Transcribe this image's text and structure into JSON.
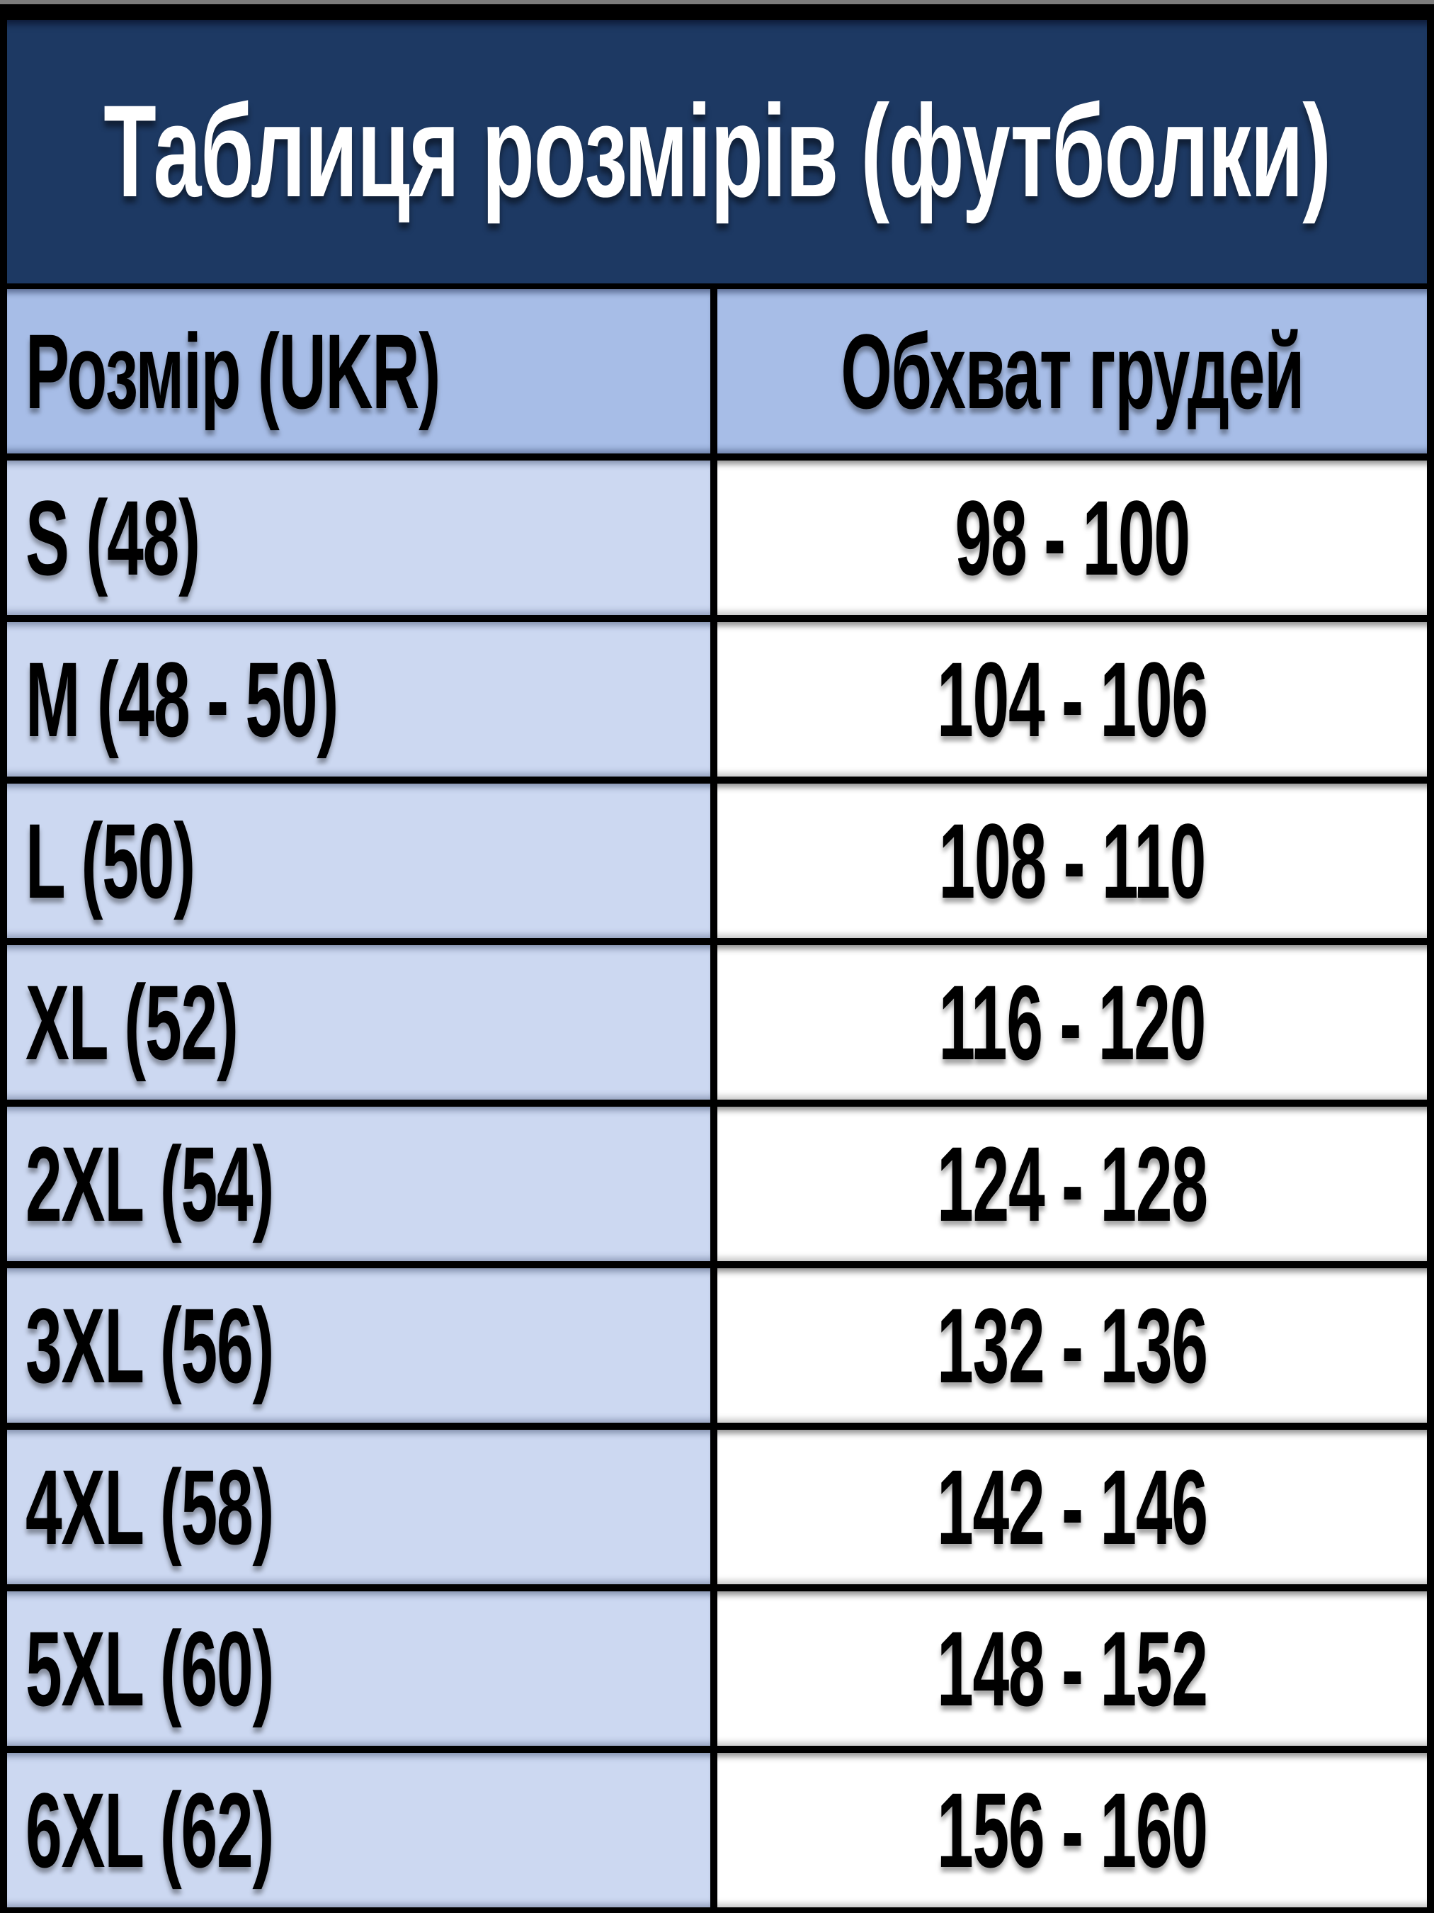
{
  "table": {
    "title": "Таблиця розмірів (футболки)",
    "columns": [
      "Розмір (UKR)",
      "Обхват грудей"
    ],
    "rows": [
      {
        "size": "S (48)",
        "chest": "98 - 100"
      },
      {
        "size": "M (48 - 50)",
        "chest": "104 - 106"
      },
      {
        "size": "L (50)",
        "chest": "108 - 110"
      },
      {
        "size": "XL (52)",
        "chest": "116 - 120"
      },
      {
        "size": "2XL (54)",
        "chest": "124 - 128"
      },
      {
        "size": "3XL (56)",
        "chest": "132 - 136"
      },
      {
        "size": "4XL (58)",
        "chest": "142 - 146"
      },
      {
        "size": "5XL (60)",
        "chest": "148 - 152"
      },
      {
        "size": "6XL (62)",
        "chest": "156 - 160"
      }
    ]
  },
  "colors": {
    "title_bg": "#1d3963",
    "header_bg": "#a7bde7",
    "row_bg": "#ccd8f1",
    "value_bg": "#ffffff",
    "border": "#000000",
    "title_text": "#ffffff",
    "cell_text": "#000000"
  },
  "chart_data": {
    "type": "table",
    "title": "Таблиця розмірів (футболки)",
    "columns": [
      "Розмір (UKR)",
      "Обхват грудей"
    ],
    "rows": [
      [
        "S (48)",
        "98 - 100"
      ],
      [
        "M (48 - 50)",
        "104 - 106"
      ],
      [
        "L (50)",
        "108 - 110"
      ],
      [
        "XL (52)",
        "116 - 120"
      ],
      [
        "2XL (54)",
        "124 - 128"
      ],
      [
        "3XL (56)",
        "132 - 136"
      ],
      [
        "4XL (58)",
        "142 - 146"
      ],
      [
        "5XL (60)",
        "148 - 152"
      ],
      [
        "6XL (62)",
        "156 - 160"
      ]
    ]
  }
}
